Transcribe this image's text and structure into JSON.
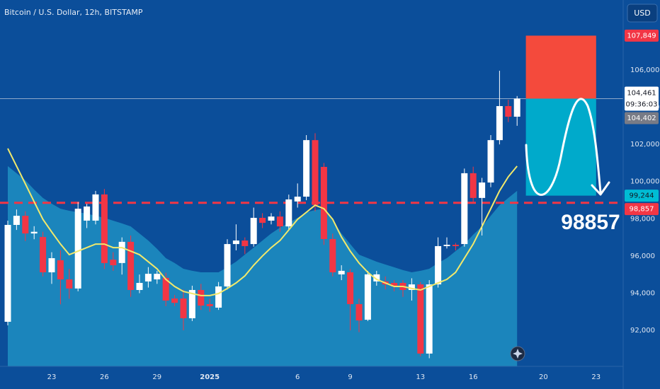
{
  "chart_data": {
    "type": "candlestick",
    "title": "Bitcoin / U.S. Dollar, 12h, BITSTAMP",
    "currency": "USD",
    "categories": [
      null,
      null,
      null,
      null,
      null,
      "23",
      null,
      null,
      null,
      null,
      null,
      "26",
      null,
      null,
      null,
      null,
      null,
      "29",
      null,
      null,
      null,
      null,
      null,
      "2025",
      null,
      null,
      null,
      null,
      null,
      null,
      null,
      null,
      null,
      "6",
      null,
      null,
      null,
      null,
      null,
      "9",
      null,
      null,
      null,
      null,
      null,
      null,
      null,
      "13",
      null,
      null,
      null,
      null,
      null,
      "16",
      null,
      null,
      null,
      null,
      null,
      null,
      null,
      "20",
      null,
      null,
      null,
      null,
      null,
      "23",
      null,
      null
    ],
    "open": [
      92460,
      97670,
      98160,
      97210,
      97020,
      95120,
      95770,
      94740,
      94250,
      97900,
      97900,
      99310,
      95800,
      95620,
      96760,
      94170,
      94630,
      94740,
      94820,
      93710,
      93710,
      92650,
      94170,
      93410,
      93220,
      94360,
      96640,
      96830,
      96640,
      98050,
      97900,
      98120,
      97590,
      98930,
      99190,
      102230,
      100790,
      96910,
      95010,
      95120,
      93410,
      92570,
      94630,
      94630,
      94550,
      94550,
      94170,
      94470,
      90750,
      94470,
      96530,
      96600,
      96640,
      100450,
      99120,
      99950,
      102230,
      104060,
      103490,
      null,
      null,
      null,
      null,
      null,
      null,
      null,
      null,
      null,
      null,
      null
    ],
    "high": [
      97900,
      98500,
      98400,
      97600,
      97300,
      96200,
      96300,
      95300,
      98900,
      98800,
      99500,
      99600,
      96200,
      97000,
      97100,
      95000,
      95400,
      95200,
      95100,
      93900,
      94200,
      94400,
      94500,
      93700,
      94600,
      96900,
      97700,
      97000,
      98600,
      98300,
      98300,
      98400,
      99300,
      99900,
      102500,
      102600,
      101000,
      97200,
      95500,
      95300,
      93700,
      95200,
      95200,
      94900,
      94700,
      94700,
      94800,
      94600,
      94700,
      97000,
      97000,
      96700,
      100700,
      100800,
      100200,
      102500,
      105960,
      104400,
      104600,
      null,
      null,
      null,
      null,
      null,
      null,
      null,
      null,
      null,
      null,
      null
    ],
    "low": [
      92270,
      97400,
      96800,
      96900,
      94900,
      94500,
      93400,
      93700,
      94100,
      97500,
      97700,
      95300,
      95200,
      95000,
      93800,
      94000,
      94300,
      94500,
      93300,
      93300,
      92000,
      92500,
      93100,
      93000,
      93100,
      94200,
      96300,
      96100,
      96500,
      97500,
      97700,
      97300,
      97400,
      98600,
      99000,
      98400,
      96600,
      94900,
      94700,
      92000,
      91900,
      92500,
      94400,
      94200,
      94100,
      93800,
      93600,
      90600,
      90500,
      94300,
      96400,
      96300,
      96500,
      98900,
      97100,
      99700,
      102000,
      103200,
      103000,
      null,
      null,
      null,
      null,
      null,
      null,
      null,
      null,
      null,
      null,
      null
    ],
    "close": [
      97670,
      98160,
      97210,
      97300,
      95120,
      95880,
      94740,
      94250,
      98540,
      98660,
      99310,
      95620,
      95500,
      96760,
      94170,
      94550,
      95040,
      95040,
      93600,
      93480,
      92650,
      94170,
      93330,
      93300,
      94360,
      96640,
      96830,
      96530,
      98050,
      97780,
      98120,
      97590,
      99040,
      99190,
      102230,
      98740,
      96910,
      95120,
      95200,
      93410,
      92530,
      95010,
      95010,
      94470,
      94360,
      94170,
      94470,
      90750,
      94470,
      96530,
      96600,
      96530,
      100450,
      99120,
      99950,
      102230,
      104060,
      103490,
      104461,
      null,
      null,
      null,
      null,
      null,
      null,
      null,
      null,
      null,
      null,
      null
    ],
    "up_color": "#ffffff",
    "down_color": "#f23645",
    "series": [
      {
        "type": "area",
        "color": "#1f8fc2",
        "values": [
          100830,
          100450,
          100070,
          99570,
          99120,
          98810,
          98540,
          98430,
          98350,
          98280,
          98160,
          98050,
          97900,
          97750,
          97590,
          97210,
          96830,
          96380,
          95880,
          95620,
          95310,
          95200,
          95120,
          95120,
          95120,
          95390,
          95690,
          96070,
          96450,
          96830,
          97210,
          97520,
          97780,
          98050,
          98350,
          98470,
          98540,
          97900,
          97210,
          96640,
          96070,
          95880,
          95690,
          95540,
          95390,
          95240,
          95120,
          95200,
          95310,
          95620,
          95880,
          96260,
          96640,
          97140,
          97590,
          98160,
          98730,
          99120,
          99500,
          null,
          null,
          null,
          null,
          null,
          null,
          null,
          null,
          null,
          null,
          null
        ]
      },
      {
        "type": "line",
        "color": "#f2e96b",
        "values": [
          101780,
          100830,
          99880,
          98920,
          97970,
          97290,
          96640,
          96070,
          96260,
          96450,
          96640,
          96640,
          96450,
          96450,
          96260,
          96070,
          95690,
          95310,
          94740,
          94360,
          94090,
          93980,
          93870,
          93870,
          93980,
          94250,
          94550,
          94930,
          95500,
          96000,
          96450,
          96830,
          97400,
          97970,
          98350,
          98730,
          98540,
          97970,
          97020,
          96260,
          95620,
          95120,
          94740,
          94550,
          94360,
          94360,
          94250,
          94170,
          94360,
          94550,
          94740,
          95120,
          95880,
          96640,
          97590,
          98540,
          99500,
          100260,
          100830,
          null,
          null,
          null,
          null,
          null,
          null,
          null,
          null,
          null,
          null,
          null
        ]
      }
    ],
    "ylim": [
      90062,
      109766
    ],
    "yticks": [
      {
        "value": 92000,
        "label": "92,000"
      },
      {
        "value": 94000,
        "label": "94,000"
      },
      {
        "value": 96000,
        "label": "96,000"
      },
      {
        "value": 98000,
        "label": "98,000"
      },
      {
        "value": 100000,
        "label": "100,000"
      },
      {
        "value": 102000,
        "label": "102,000"
      },
      {
        "value": 104000,
        "label": "104,000"
      },
      {
        "value": 106000,
        "label": "106,000"
      }
    ],
    "grid": false,
    "levels": [
      {
        "value": 104461,
        "style": "solid",
        "color": "#8fa9c9"
      },
      {
        "value": 98857,
        "style": "dashed",
        "color": "#f23645"
      }
    ],
    "position": {
      "stop": 107849,
      "entry": 104461,
      "target": 99244,
      "stop_color": "#f44a3c",
      "target_color": "#00aacb"
    },
    "annotation": "98857",
    "price_tags": [
      {
        "value": 107849,
        "label": "107,849",
        "color": "#f23645",
        "text_color": "#ffffff"
      },
      {
        "value": 104461,
        "label": "104,461",
        "note": "09:36:03",
        "color": "#ffffff",
        "text_color": "#131722"
      },
      {
        "value": 104402,
        "label": "104,402",
        "color": "#787b86",
        "text_color": "#ffffff"
      },
      {
        "value": 99244,
        "label": "99,244",
        "color": "#00bcd4",
        "text_color": "#131722"
      },
      {
        "value": 98857,
        "label": "98,857",
        "color": "#f23645",
        "text_color": "#ffffff"
      }
    ]
  }
}
